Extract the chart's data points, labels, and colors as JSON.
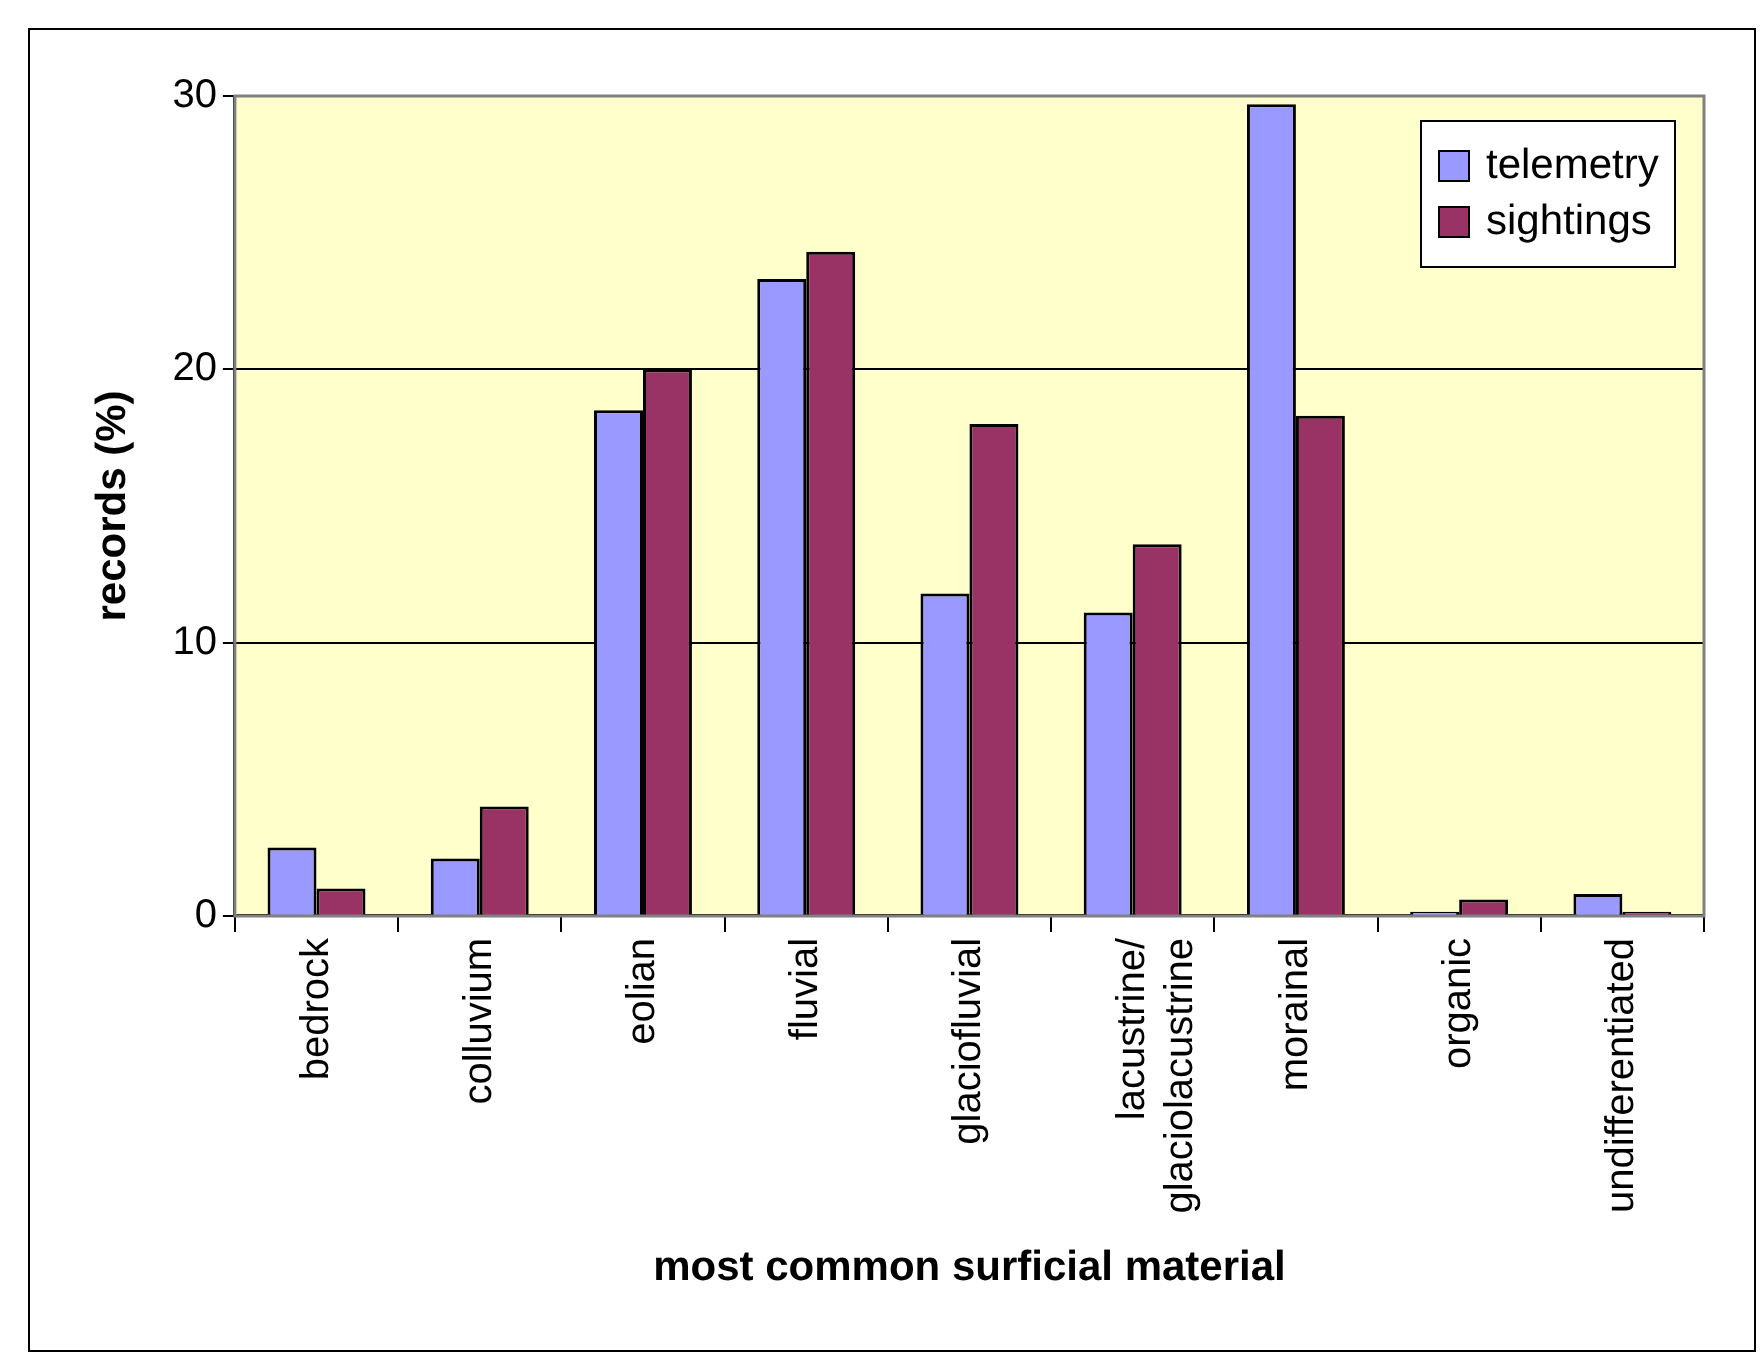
{
  "chart_data": {
    "type": "bar",
    "xlabel": "most common surficial material",
    "ylabel": "records (%)",
    "categories": [
      "bedrock",
      "colluvium",
      "eolian",
      "fluvial",
      "glaciofluvial",
      "lacustrine/ glaciolacustrine",
      "morainal",
      "organic",
      "undifferentiated"
    ],
    "series": [
      {
        "name": "telemetry",
        "color": "#9999ff",
        "values": [
          2.5,
          2.1,
          18.5,
          23.3,
          11.8,
          11.1,
          29.7,
          0.15,
          0.8
        ]
      },
      {
        "name": "sightings",
        "color": "#993366",
        "values": [
          1.0,
          4.0,
          20.0,
          24.3,
          18.0,
          13.6,
          18.3,
          0.6,
          0.15
        ]
      }
    ],
    "ylim": [
      0,
      30
    ],
    "yticks": [
      0,
      10,
      20,
      30
    ],
    "grid": "y",
    "legend": "top right"
  }
}
